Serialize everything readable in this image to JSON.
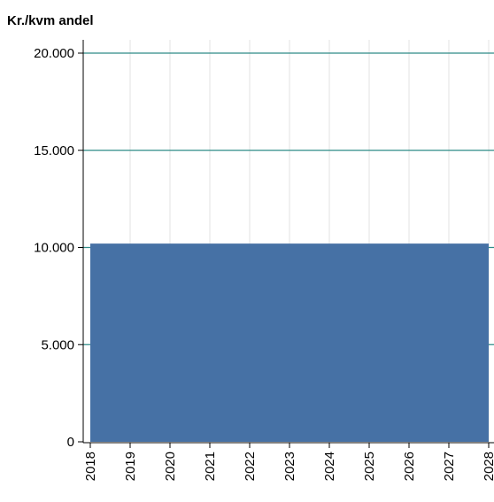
{
  "chart_data": {
    "type": "area",
    "title": "Kr./kvm andel",
    "xlabel": "",
    "ylabel": "",
    "x": [
      "2018",
      "2019",
      "2020",
      "2021",
      "2022",
      "2023",
      "2024",
      "2025",
      "2026",
      "2027",
      "2028"
    ],
    "series": [
      {
        "values": [
          10200,
          10200,
          10200,
          10200,
          10200,
          10200,
          10200,
          10200,
          10200,
          10200,
          10200
        ]
      }
    ],
    "ylim": [
      0,
      20000
    ],
    "yticks": [
      0,
      5000,
      10000,
      15000,
      20000
    ],
    "ytick_labels": [
      "0",
      "5.000",
      "10.000",
      "15.000",
      "20.000"
    ],
    "grid": true,
    "colors": {
      "fill": "#4671a5",
      "major_grid": "#2e8b87",
      "minor_grid": "#e3e3e3",
      "axis": "#000000"
    }
  }
}
